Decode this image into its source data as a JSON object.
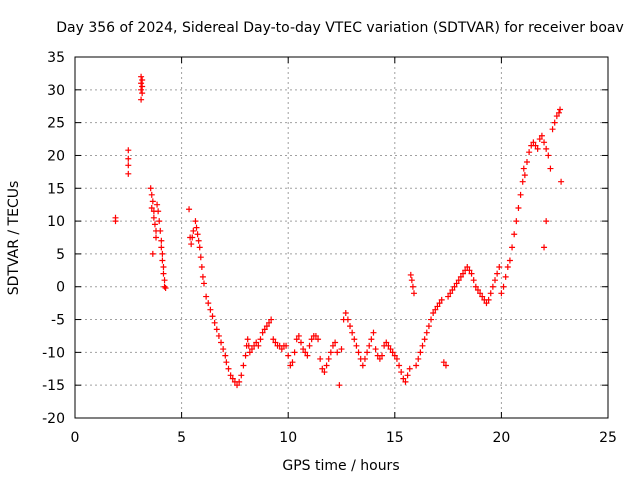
{
  "chart_data": {
    "type": "scatter",
    "title": "Day 356 of 2024, Sidereal Day-to-day VTEC variation (SDTVAR) for receiver boav",
    "xlabel": "GPS time / hours",
    "ylabel": "SDTVAR / TECUs",
    "xlim": [
      0,
      25
    ],
    "ylim": [
      -20,
      35
    ],
    "xticks": [
      0,
      5,
      10,
      15,
      20,
      25
    ],
    "yticks": [
      -20,
      -15,
      -10,
      -5,
      0,
      5,
      10,
      15,
      20,
      25,
      30,
      35
    ],
    "xtick_labels": [
      "0",
      "5",
      "10",
      "15",
      "20",
      "25"
    ],
    "ytick_labels": [
      "-20",
      "-15",
      "-10",
      "-5",
      "0",
      "5",
      "10",
      "15",
      "20",
      "25",
      "30",
      "35"
    ],
    "grid": true,
    "marker": "plus",
    "color": "#ff0000",
    "series": [
      {
        "name": "SDTVAR",
        "x": [
          1.9,
          1.9,
          2.5,
          2.5,
          2.5,
          2.5,
          3.1,
          3.1,
          3.1,
          3.1,
          3.15,
          3.15,
          3.15,
          3.55,
          3.6,
          3.65,
          3.6,
          3.7,
          3.7,
          3.75,
          3.8,
          3.8,
          3.85,
          3.9,
          3.95,
          4.0,
          4.05,
          4.05,
          4.1,
          4.1,
          4.15,
          4.15,
          4.2,
          4.2,
          4.25,
          3.65,
          5.35,
          5.4,
          5.45,
          5.5,
          5.55,
          5.65,
          5.7,
          5.75,
          5.8,
          5.85,
          5.9,
          5.95,
          6.0,
          6.05,
          6.15,
          6.25,
          6.35,
          6.45,
          6.55,
          6.65,
          6.75,
          6.85,
          6.95,
          7.05,
          7.1,
          7.2,
          7.3,
          7.4,
          7.5,
          7.6,
          7.7,
          7.8,
          7.9,
          8.0,
          8.05,
          8.1,
          8.15,
          8.2,
          8.3,
          8.4,
          8.5,
          8.6,
          8.7,
          8.8,
          8.9,
          9.0,
          9.1,
          9.2,
          9.3,
          9.4,
          9.5,
          9.6,
          9.7,
          9.8,
          9.9,
          10.0,
          10.1,
          10.2,
          10.3,
          10.4,
          10.5,
          10.6,
          10.7,
          10.8,
          10.9,
          11.0,
          11.1,
          11.2,
          11.3,
          11.4,
          11.5,
          11.6,
          11.7,
          11.8,
          11.9,
          12.0,
          12.1,
          12.2,
          12.3,
          12.4,
          12.5,
          12.6,
          12.7,
          12.8,
          12.9,
          13.0,
          13.1,
          13.2,
          13.3,
          13.4,
          13.5,
          13.6,
          13.7,
          13.8,
          13.9,
          14.0,
          14.1,
          14.2,
          14.3,
          14.4,
          14.5,
          14.6,
          14.7,
          14.8,
          14.9,
          15.0,
          15.1,
          15.2,
          15.3,
          15.4,
          15.5,
          15.6,
          15.7,
          15.75,
          15.8,
          15.85,
          15.9,
          16.0,
          16.1,
          16.2,
          16.3,
          16.4,
          16.5,
          16.6,
          16.7,
          16.8,
          16.9,
          17.0,
          17.1,
          17.2,
          17.3,
          17.4,
          17.5,
          17.6,
          17.7,
          17.8,
          17.9,
          18.0,
          18.1,
          18.2,
          18.3,
          18.4,
          18.5,
          18.6,
          18.7,
          18.8,
          18.9,
          19.0,
          19.1,
          19.2,
          19.3,
          19.4,
          19.5,
          19.6,
          19.7,
          19.8,
          19.9,
          20.0,
          20.1,
          20.2,
          20.3,
          20.4,
          20.5,
          20.6,
          20.7,
          20.8,
          20.9,
          21.0,
          21.05,
          21.1,
          21.2,
          21.3,
          21.4,
          21.5,
          21.6,
          21.7,
          21.8,
          21.9,
          22.0,
          22.1,
          22.2,
          22.3,
          22.4,
          22.5,
          22.6,
          22.7,
          22.75,
          22.8,
          22.0,
          22.1
        ],
        "y": [
          10.5,
          10.0,
          20.8,
          19.5,
          18.5,
          17.2,
          32.0,
          31.0,
          30.0,
          28.5,
          29.5,
          30.5,
          31.5,
          15.0,
          14.0,
          13.0,
          12.0,
          11.5,
          10.5,
          9.5,
          8.5,
          7.5,
          12.5,
          11.5,
          10.0,
          8.5,
          7.0,
          6.0,
          5.0,
          4.0,
          3.0,
          2.0,
          1.0,
          0.0,
          -0.2,
          5.0,
          11.8,
          7.5,
          6.5,
          7.5,
          8.5,
          10.0,
          9.0,
          8.0,
          7.0,
          6.0,
          4.5,
          3.0,
          1.5,
          0.5,
          -1.5,
          -2.5,
          -3.5,
          -4.5,
          -5.5,
          -6.5,
          -7.5,
          -8.5,
          -9.5,
          -10.5,
          -11.5,
          -12.5,
          -13.5,
          -14.0,
          -14.5,
          -15.0,
          -14.5,
          -13.5,
          -12.0,
          -10.5,
          -9.0,
          -8.0,
          -9.0,
          -10.0,
          -9.5,
          -9.0,
          -8.5,
          -9.0,
          -8.0,
          -7.0,
          -6.5,
          -6.0,
          -5.5,
          -5.0,
          -8.0,
          -8.5,
          -9.0,
          -9.0,
          -9.5,
          -9.0,
          -9.0,
          -10.5,
          -12.0,
          -11.5,
          -10.0,
          -8.0,
          -7.5,
          -8.5,
          -9.5,
          -10.0,
          -10.5,
          -9.0,
          -8.0,
          -7.5,
          -7.5,
          -8.0,
          -11.0,
          -12.5,
          -13.0,
          -12.0,
          -11.0,
          -10.0,
          -9.0,
          -8.5,
          -10.0,
          -15.0,
          -9.5,
          -5.0,
          -4.0,
          -5.0,
          -6.0,
          -7.0,
          -8.0,
          -9.0,
          -10.0,
          -11.0,
          -12.0,
          -11.0,
          -10.0,
          -9.0,
          -8.0,
          -7.0,
          -9.5,
          -10.5,
          -11.0,
          -10.5,
          -9.0,
          -8.5,
          -9.0,
          -9.5,
          -10.0,
          -10.5,
          -11.0,
          -12.0,
          -13.0,
          -14.0,
          -14.5,
          -13.5,
          -12.5,
          1.8,
          1.0,
          0.0,
          -1.0,
          -12.0,
          -11.0,
          -10.0,
          -9.0,
          -8.0,
          -7.0,
          -6.0,
          -5.0,
          -4.0,
          -3.5,
          -3.0,
          -2.5,
          -2.0,
          -11.5,
          -12.0,
          -1.5,
          -1.0,
          -0.5,
          0.0,
          0.5,
          1.0,
          1.5,
          2.0,
          2.5,
          3.0,
          2.5,
          2.0,
          1.0,
          0.0,
          -0.5,
          -1.0,
          -1.5,
          -2.0,
          -2.5,
          -2.0,
          -1.0,
          0.0,
          1.0,
          2.0,
          3.0,
          -1.0,
          0.0,
          1.5,
          3.0,
          4.0,
          6.0,
          8.0,
          10.0,
          12.0,
          14.0,
          16.0,
          18.0,
          17.0,
          19.0,
          20.5,
          21.5,
          22.0,
          21.5,
          21.0,
          22.5,
          23.0,
          22.0,
          21.0,
          20.0,
          18.0,
          24.0,
          25.0,
          26.0,
          26.5,
          27.0,
          16.0,
          6.0,
          10.0
        ]
      }
    ]
  }
}
